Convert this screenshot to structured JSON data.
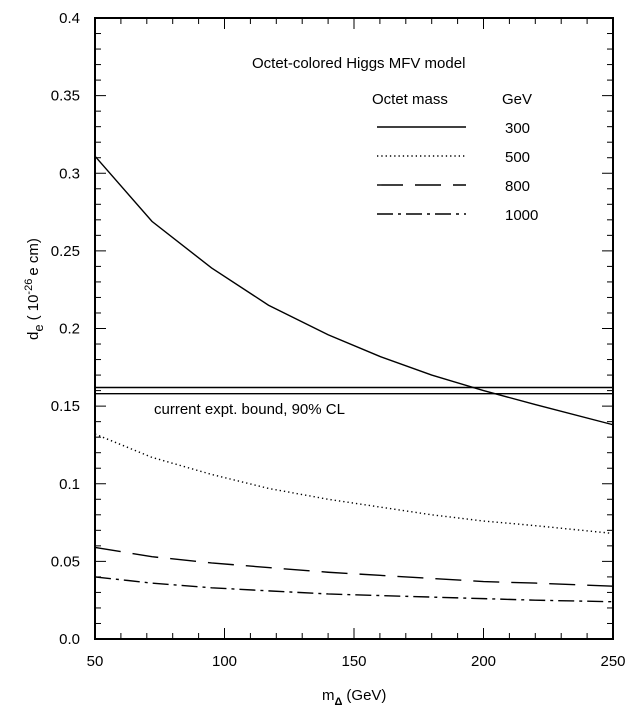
{
  "chart_data": {
    "type": "line",
    "title": "Octet-colored  Higgs MFV model",
    "xlabel_main": "m",
    "xlabel_sub": "Δ",
    "xlabel_unit": "(GeV)",
    "ylabel_main": "d",
    "ylabel_sub": "e",
    "ylabel_unit_open": "( 10",
    "ylabel_exp": "-26",
    "ylabel_unit_close": "e cm)",
    "xlim": [
      50,
      250
    ],
    "ylim": [
      0,
      0.4
    ],
    "x_ticks": [
      "50",
      "100",
      "150",
      "200",
      "250"
    ],
    "y_ticks": [
      "0.0",
      "0.05",
      "0.1",
      "0.15",
      "0.2",
      "0.25",
      "0.3",
      "0.35",
      "0.4"
    ],
    "legend_header_left": "Octet mass",
    "legend_header_right": "GeV",
    "legend_placement": "top-right",
    "grid": false,
    "x": [
      50,
      72,
      95,
      117,
      140,
      160,
      180,
      200,
      220,
      250
    ],
    "series": [
      {
        "name": "300",
        "style": "solid",
        "values": [
          0.311,
          0.269,
          0.239,
          0.215,
          0.196,
          0.182,
          0.17,
          0.16,
          0.151,
          0.138
        ]
      },
      {
        "name": "500",
        "style": "dotted",
        "values": [
          0.132,
          0.117,
          0.106,
          0.097,
          0.09,
          0.085,
          0.08,
          0.076,
          0.073,
          0.068
        ]
      },
      {
        "name": "800",
        "style": "dashed",
        "values": [
          0.059,
          0.053,
          0.049,
          0.046,
          0.043,
          0.041,
          0.039,
          0.037,
          0.036,
          0.034
        ]
      },
      {
        "name": "1000",
        "style": "dash-dot",
        "values": [
          0.04,
          0.036,
          0.033,
          0.031,
          0.029,
          0.028,
          0.027,
          0.026,
          0.025,
          0.024
        ]
      }
    ],
    "bound": {
      "label": "current expt. bound, 90% CL",
      "values": [
        0.158,
        0.162
      ]
    }
  }
}
